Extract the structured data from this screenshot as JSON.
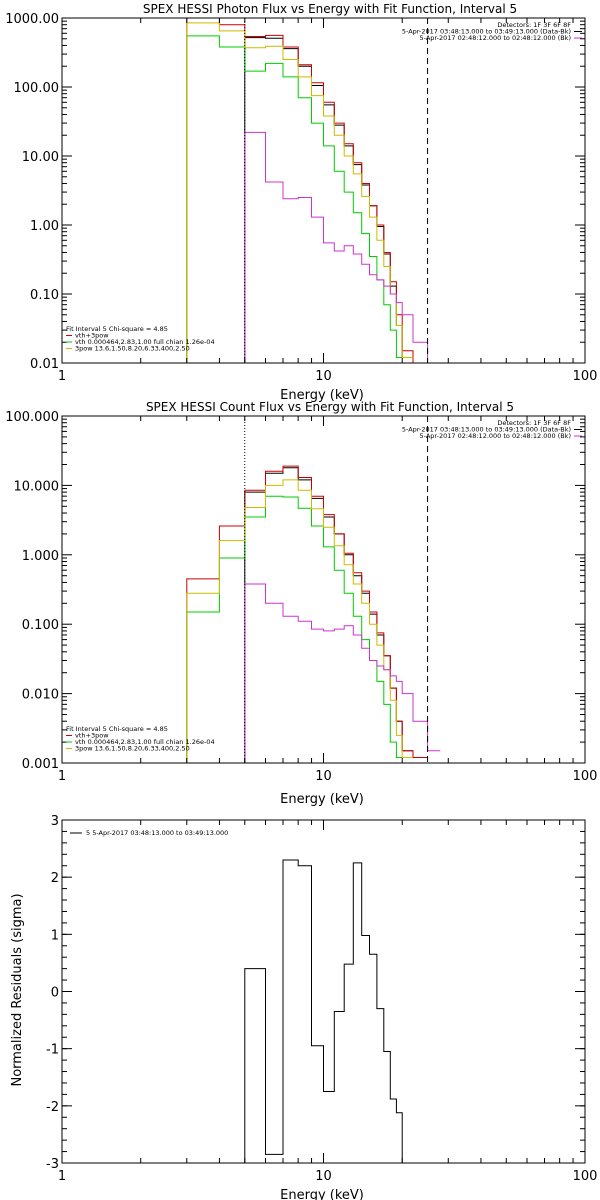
{
  "chart_data": [
    {
      "type": "step",
      "title": "SPEX HESSI Photon Flux vs Energy with Fit Function, Interval 5",
      "xlabel": "Energy (keV)",
      "ylabel": "",
      "xscale": "log",
      "yscale": "log",
      "xlim": [
        1,
        100
      ],
      "ylim": [
        0.01,
        1000
      ],
      "xticks": [
        1,
        10,
        100
      ],
      "xtick_labels": [
        "1",
        "10",
        "100"
      ],
      "yticks": [
        0.01,
        0.1,
        1,
        10,
        100,
        1000
      ],
      "ytick_labels": [
        "0.01",
        "0.10",
        "1.00",
        "10.00",
        "100.00",
        "1000.00"
      ],
      "legend_top_right": [
        {
          "text": "Detectors: 1F 3F 6F 8F",
          "color": "#000000"
        },
        {
          "text": "5-Apr-2017 03:48:13.000 to 03:49:13.000 (Data-Bk)",
          "color": "#000000"
        },
        {
          "text": "5-Apr-2017 02:48:12.000 to 02:48:12.000 (Bk)",
          "color": "#cc33cc"
        }
      ],
      "legend_bottom_left": [
        {
          "text": "Fit Interval 5   Chi-square = 4.85",
          "color": "#000000"
        },
        {
          "text": "vth+3pow",
          "color": "#cc0000"
        },
        {
          "text": "vth 0.000464,2.83,1.00  full chian 1.26e-04",
          "color": "#00cc00"
        },
        {
          "text": "3pow 13.6,1.50,8.20,6.33,400,2.50",
          "color": "#ccbb00"
        }
      ],
      "vlines": [
        {
          "x": 5.0,
          "style": "dotted"
        },
        {
          "x": 25.0,
          "style": "dashed"
        }
      ],
      "edges": [
        3,
        4,
        5,
        6,
        7,
        8,
        9,
        10,
        11,
        12,
        13,
        14,
        15,
        16,
        17,
        18,
        19,
        20,
        22,
        25,
        28
      ],
      "series": [
        {
          "name": "Data-Bk",
          "color": "#000000",
          "start": 2,
          "values": [
            520,
            510,
            360,
            200,
            105,
            55,
            28,
            14,
            7.5,
            3.8,
            1.9,
            0.95,
            0.38,
            0.13,
            0.035,
            0.012
          ]
        },
        {
          "name": "vth+3pow",
          "color": "#cc0000",
          "start": 0,
          "values": [
            1000,
            800,
            540,
            560,
            380,
            210,
            115,
            60,
            30,
            15,
            8,
            4,
            1.9,
            1.0,
            0.4,
            0.15,
            0.05,
            0.015,
            0.01
          ]
        },
        {
          "name": "vth",
          "color": "#00cc00",
          "start": 0,
          "values": [
            550,
            380,
            170,
            220,
            140,
            70,
            30,
            14,
            6,
            3,
            1.5,
            0.75,
            0.35,
            0.16,
            0.07,
            0.03,
            0.012
          ]
        },
        {
          "name": "3pow",
          "color": "#ccbb00",
          "start": 0,
          "values": [
            850,
            650,
            370,
            390,
            250,
            140,
            75,
            38,
            20,
            10,
            5.5,
            2.6,
            1.3,
            0.6,
            0.25,
            0.1,
            0.035,
            0.012
          ]
        },
        {
          "name": "Bk",
          "color": "#cc33cc",
          "start": 2,
          "values": [
            22,
            4.2,
            2.4,
            2.5,
            1.3,
            0.55,
            0.42,
            0.5,
            0.38,
            0.27,
            0.19,
            0.16,
            0.13,
            0.1,
            0.075,
            0.05,
            0.02,
            0.01
          ]
        }
      ]
    },
    {
      "type": "step",
      "title": "SPEX HESSI Count Flux vs Energy with Fit Function, Interval 5",
      "xlabel": "Energy (keV)",
      "ylabel": "",
      "xscale": "log",
      "yscale": "log",
      "xlim": [
        1,
        100
      ],
      "ylim": [
        0.001,
        100
      ],
      "xticks": [
        1,
        10,
        100
      ],
      "xtick_labels": [
        "1",
        "10",
        "100"
      ],
      "yticks": [
        0.001,
        0.01,
        0.1,
        1,
        10,
        100
      ],
      "ytick_labels": [
        "0.001",
        "0.010",
        "0.100",
        "1.000",
        "10.000",
        "100.000"
      ],
      "legend_top_right": [
        {
          "text": "Detectors: 1F 3F 6F 8F",
          "color": "#000000"
        },
        {
          "text": "5-Apr-2017 03:48:13.000 to 03:49:13.000 (Data-Bk)",
          "color": "#000000"
        },
        {
          "text": "5-Apr-2017 02:48:12.000 to 02:48:12.000 (Bk)",
          "color": "#cc33cc"
        }
      ],
      "legend_bottom_left": [
        {
          "text": "Fit Interval 5   Chi-square = 4.85",
          "color": "#000000"
        },
        {
          "text": "vth+3pow",
          "color": "#cc0000"
        },
        {
          "text": "vth 0.000464,2.83,1.00  full chian 1.26e-04",
          "color": "#00cc00"
        },
        {
          "text": "3pow 13.6,1.50,8.20,6.33,400,2.50",
          "color": "#ccbb00"
        }
      ],
      "vlines": [
        {
          "x": 5.0,
          "style": "dotted"
        },
        {
          "x": 25.0,
          "style": "dashed"
        }
      ],
      "edges": [
        3,
        4,
        5,
        6,
        7,
        8,
        9,
        10,
        11,
        12,
        13,
        14,
        15,
        16,
        17,
        18,
        19,
        20,
        22,
        25,
        28,
        31
      ],
      "series": [
        {
          "name": "Data-Bk",
          "color": "#000000",
          "start": 2,
          "values": [
            8.0,
            15,
            18,
            12,
            6.5,
            3.5,
            2.0,
            1.0,
            0.5,
            0.28,
            0.14,
            0.07,
            0.035,
            0.012,
            0.004,
            0.0015
          ]
        },
        {
          "name": "vth+3pow",
          "color": "#cc0000",
          "start": 0,
          "values": [
            0.45,
            2.6,
            8.5,
            16,
            19,
            13,
            7,
            3.8,
            2.0,
            1.05,
            0.55,
            0.3,
            0.15,
            0.075,
            0.035,
            0.012,
            0.004,
            0.0015,
            0.0012
          ]
        },
        {
          "name": "vth",
          "color": "#00cc00",
          "start": 0,
          "values": [
            0.15,
            0.9,
            3.5,
            7,
            6.8,
            4.7,
            2.6,
            1.3,
            0.6,
            0.28,
            0.13,
            0.06,
            0.03,
            0.015,
            0.007,
            0.002,
            0.0012
          ]
        },
        {
          "name": "3pow",
          "color": "#ccbb00",
          "start": 0,
          "values": [
            0.28,
            1.6,
            4.8,
            10,
            12,
            8.5,
            4.6,
            2.5,
            1.35,
            0.72,
            0.38,
            0.2,
            0.1,
            0.05,
            0.022,
            0.008,
            0.0025,
            0.0012
          ]
        },
        {
          "name": "Bk",
          "color": "#cc33cc",
          "start": 2,
          "values": [
            0.38,
            0.2,
            0.13,
            0.11,
            0.085,
            0.08,
            0.085,
            0.095,
            0.07,
            0.045,
            0.03,
            0.025,
            0.022,
            0.018,
            0.015,
            0.01,
            0.004,
            0.0015
          ]
        }
      ]
    },
    {
      "type": "step",
      "title": "",
      "xlabel": "Energy (keV)",
      "ylabel": "Normalized Residuals (sigma)",
      "xscale": "log",
      "yscale": "linear",
      "xlim": [
        1,
        100
      ],
      "ylim": [
        -3,
        3
      ],
      "xticks": [
        1,
        10,
        100
      ],
      "xtick_labels": [
        "1",
        "10",
        "100"
      ],
      "yticks": [
        -3,
        -2,
        -1,
        0,
        1,
        2,
        3
      ],
      "ytick_labels": [
        "-3",
        "-2",
        "-1",
        "0",
        "1",
        "2",
        "3"
      ],
      "legend_top_left": [
        {
          "text": "5  5-Apr-2017 03:48:13.000 to 03:49:13.000",
          "color": "#000000"
        }
      ],
      "edges": [
        5,
        6,
        7,
        8,
        9,
        10,
        11,
        12,
        13,
        14,
        15,
        16,
        17,
        18,
        19,
        20,
        22,
        25
      ],
      "series": [
        {
          "name": "",
          "color": "#000000",
          "start": 0,
          "values": [
            0.4,
            -2.85,
            2.3,
            2.2,
            -0.95,
            -1.75,
            -0.35,
            0.48,
            2.25,
            0.98,
            0.65,
            -0.3,
            -1.05,
            -1.88,
            -2.12,
            -3.1,
            -3.1
          ]
        }
      ]
    }
  ]
}
